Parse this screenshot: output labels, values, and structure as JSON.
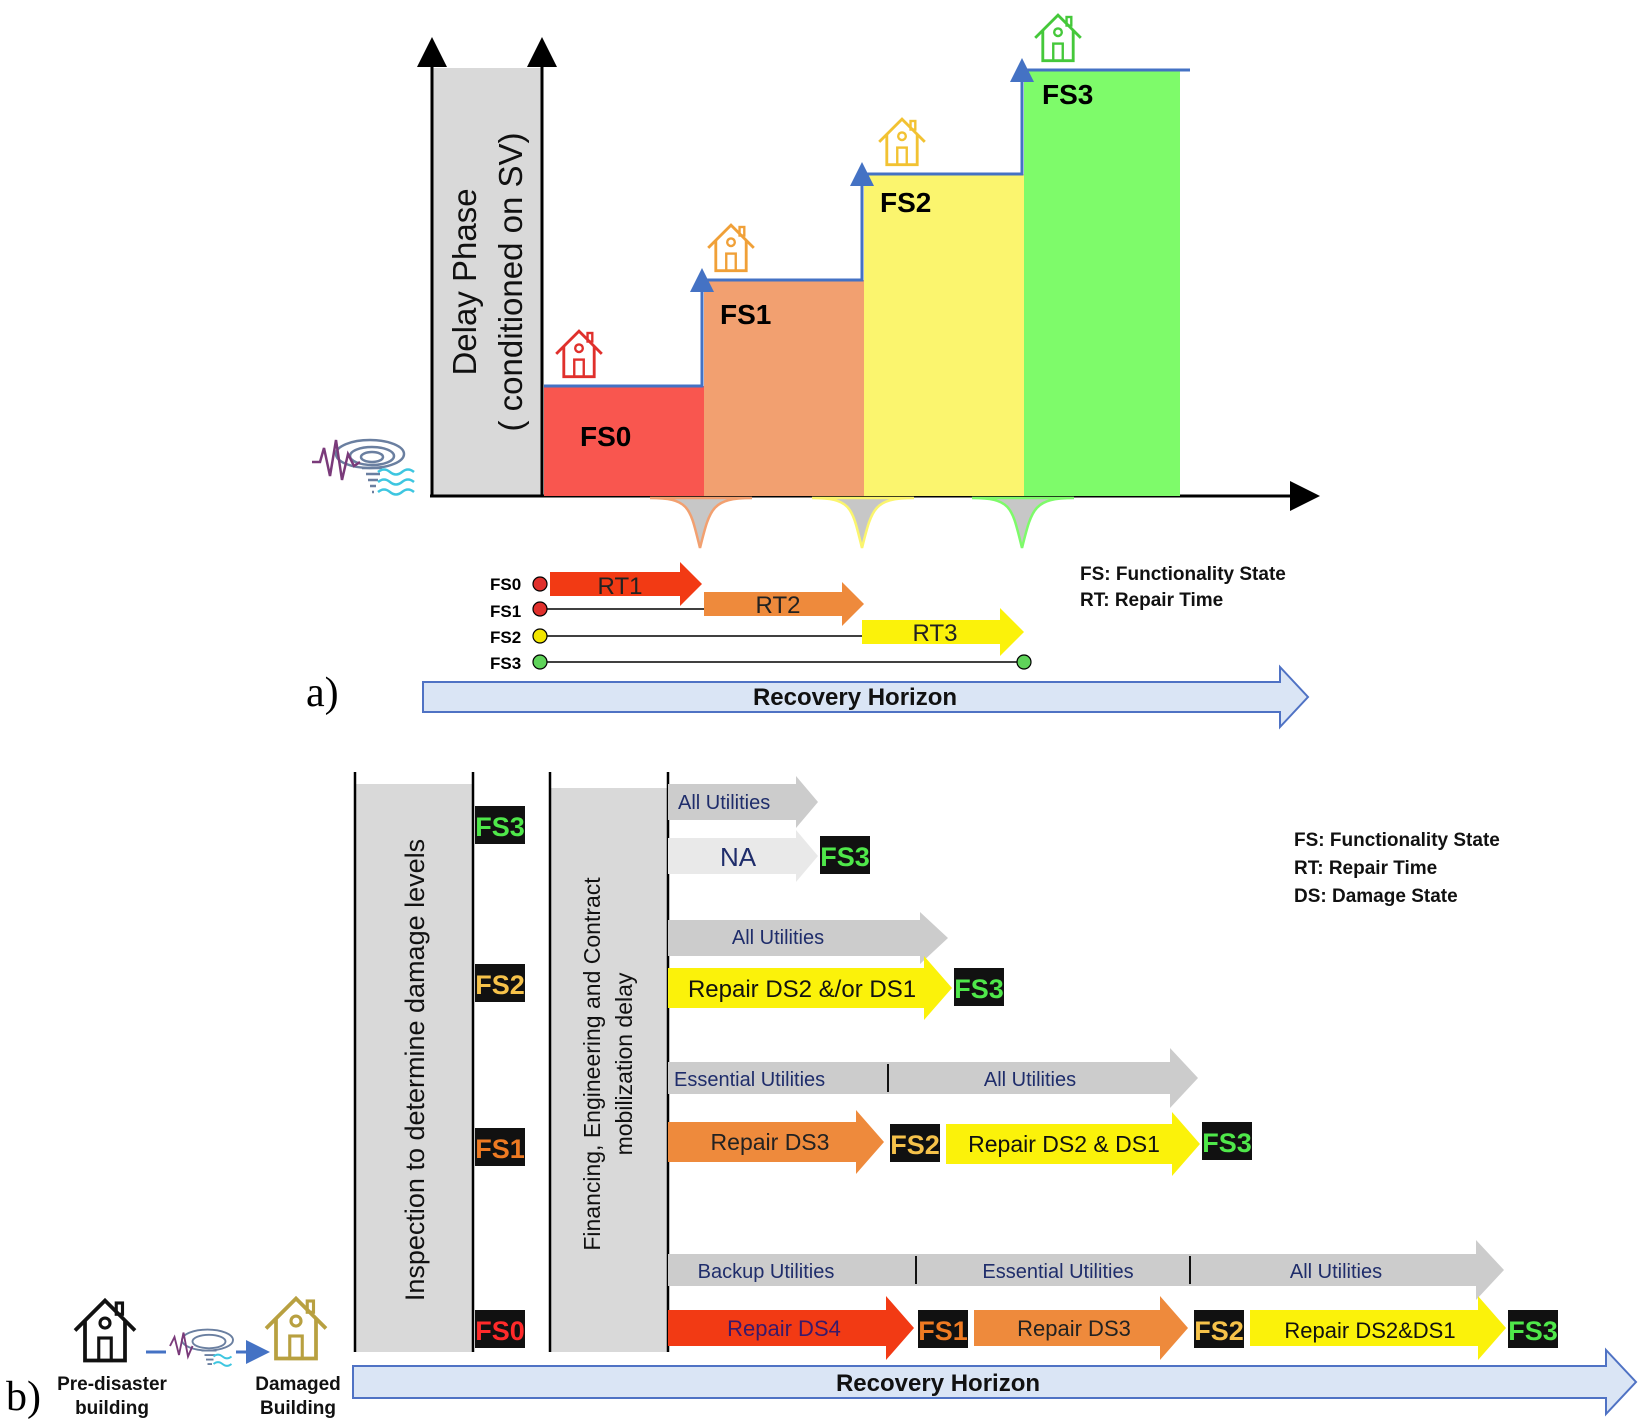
{
  "part_a": {
    "panel_label": "a)",
    "delay_phase_line1": "Delay Phase",
    "delay_phase_line2": "( conditioned on SV)",
    "steps": [
      {
        "label": "FS0",
        "color": "#f9564f",
        "house_color": "#e0302c"
      },
      {
        "label": "FS1",
        "color": "#f2a070",
        "house_color": "#f0a038"
      },
      {
        "label": "FS2",
        "color": "#fbf56e",
        "house_color": "#f2c232"
      },
      {
        "label": "FS3",
        "color": "#7efb6a",
        "house_color": "#45c83a"
      }
    ],
    "timeline": {
      "rows": [
        {
          "label": "FS0",
          "dot_color": "#e0302c"
        },
        {
          "label": "FS1",
          "dot_color": "#e0302c"
        },
        {
          "label": "FS2",
          "dot_color": "#f2e600"
        },
        {
          "label": "FS3",
          "dot_color": "#5fd35a"
        }
      ],
      "arrows": [
        {
          "label": "RT1",
          "color": "#f23a14"
        },
        {
          "label": "RT2",
          "color": "#ee8a3c"
        },
        {
          "label": "RT3",
          "color": "#fbf20a"
        }
      ]
    },
    "legend": [
      "FS: Functionality State",
      "RT: Repair Time"
    ],
    "horizon_label": "Recovery Horizon"
  },
  "part_b": {
    "panel_label": "b)",
    "inspection_label": "Inspection to determine damage levels",
    "financing_line1": "Financing, Engineering and Contract",
    "financing_line2": "mobilization delay",
    "fs_markers": [
      "FS3",
      "FS2",
      "FS1",
      "FS0"
    ],
    "fs_marker_colors": {
      "FS0": "#ff2a2a",
      "FS1": "#ee7a22",
      "FS2": "#f6c24a",
      "FS3": "#4fe84a"
    },
    "rows": {
      "fs3": {
        "utilities": [
          "All Utilities"
        ],
        "repair": "NA",
        "end": "FS3"
      },
      "fs2": {
        "utilities": [
          "All Utilities"
        ],
        "repair": "Repair DS2 &/or DS1",
        "end": "FS3"
      },
      "fs1": {
        "utilities": [
          "Essential Utilities",
          "All Utilities"
        ],
        "repairs": [
          "Repair DS3",
          "Repair DS2 & DS1"
        ],
        "mids": [
          "FS2"
        ],
        "end": "FS3"
      },
      "fs0": {
        "utilities": [
          "Backup Utilities",
          "Essential Utilities",
          "All Utilities"
        ],
        "repairs": [
          "Repair DS4",
          "Repair DS3",
          "Repair DS2&DS1"
        ],
        "mids": [
          "FS1",
          "FS2"
        ],
        "end": "FS3"
      }
    },
    "legend": [
      "FS: Functionality State",
      "RT: Repair Time",
      "DS: Damage State"
    ],
    "pre_disaster_line1": "Pre-disaster",
    "pre_disaster_line2": "building",
    "damaged_line1": "Damaged",
    "damaged_line2": "Building",
    "horizon_label": "Recovery Horizon"
  },
  "colors": {
    "gray_phase": "#d9d9d9",
    "utility_gray": "#cccccc",
    "horizon_fill": "#dae5f5",
    "horizon_stroke": "#4f72c4",
    "step_line": "#4472c4",
    "text_navy": "#1f2d6b",
    "marker_bg": "#111111"
  }
}
